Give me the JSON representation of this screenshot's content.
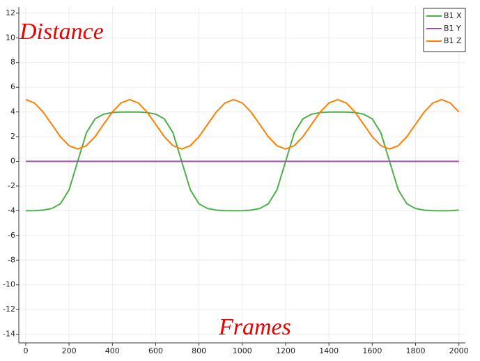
{
  "chart_data": {
    "type": "line",
    "ylabel": "Distance",
    "xlabel": "Frames",
    "x": [
      0,
      40,
      80,
      120,
      160,
      200,
      240,
      280,
      320,
      360,
      400,
      440,
      480,
      520,
      560,
      600,
      640,
      680,
      720,
      760,
      800,
      840,
      880,
      920,
      960,
      1000,
      1040,
      1080,
      1120,
      1160,
      1200,
      1240,
      1280,
      1320,
      1360,
      1400,
      1440,
      1480,
      1520,
      1560,
      1600,
      1640,
      1680,
      1720,
      1760,
      1800,
      1840,
      1880,
      1920,
      1960,
      2000
    ],
    "series": [
      {
        "name": "B1 X",
        "color": "#4daf4a",
        "values": [
          -4,
          -3.99,
          -3.95,
          -3.82,
          -3.44,
          -2.31,
          0,
          2.31,
          3.44,
          3.82,
          3.95,
          3.99,
          4,
          3.99,
          3.95,
          3.82,
          3.44,
          2.31,
          0,
          -2.31,
          -3.44,
          -3.82,
          -3.95,
          -3.99,
          -4,
          -3.99,
          -3.95,
          -3.82,
          -3.44,
          -2.31,
          0,
          2.31,
          3.44,
          3.82,
          3.95,
          3.99,
          4,
          3.99,
          3.95,
          3.82,
          3.44,
          2.31,
          0,
          -2.31,
          -3.44,
          -3.82,
          -3.95,
          -3.99,
          -4,
          -3.99,
          -3.95
        ]
      },
      {
        "name": "B1 Y",
        "color": "#984ea3",
        "values": [
          0,
          0,
          0,
          0,
          0,
          0,
          0,
          0,
          0,
          0,
          0,
          0,
          0,
          0,
          0,
          0,
          0,
          0,
          0,
          0,
          0,
          0,
          0,
          0,
          0,
          0,
          0,
          0,
          0,
          0,
          0,
          0,
          0,
          0,
          0,
          0,
          0,
          0,
          0,
          0,
          0,
          0,
          0,
          0,
          0,
          0,
          0,
          0,
          0,
          0,
          0
        ]
      },
      {
        "name": "B1 Z",
        "color": "#ff7f00",
        "values": [
          5,
          4.73,
          4,
          3,
          2,
          1.27,
          1,
          1.27,
          2,
          3,
          4,
          4.73,
          5,
          4.73,
          4,
          3,
          2,
          1.27,
          1,
          1.27,
          2,
          3,
          4,
          4.73,
          5,
          4.73,
          4,
          3,
          2,
          1.27,
          1,
          1.27,
          2,
          3,
          4,
          4.73,
          5,
          4.73,
          4,
          3,
          2,
          1.27,
          1,
          1.27,
          2,
          3,
          4,
          4.73,
          5,
          4.73,
          4
        ]
      }
    ],
    "xlim": [
      -32,
      2030
    ],
    "ylim": [
      -14.7,
      12.5
    ],
    "xticks": [
      0,
      200,
      400,
      600,
      800,
      1000,
      1200,
      1400,
      1600,
      1800,
      2000
    ],
    "yticks": [
      -14,
      -12,
      -10,
      -8,
      -6,
      -4,
      -2,
      0,
      2,
      4,
      6,
      8,
      10,
      12
    ],
    "grid": true,
    "legend": "top-right"
  }
}
